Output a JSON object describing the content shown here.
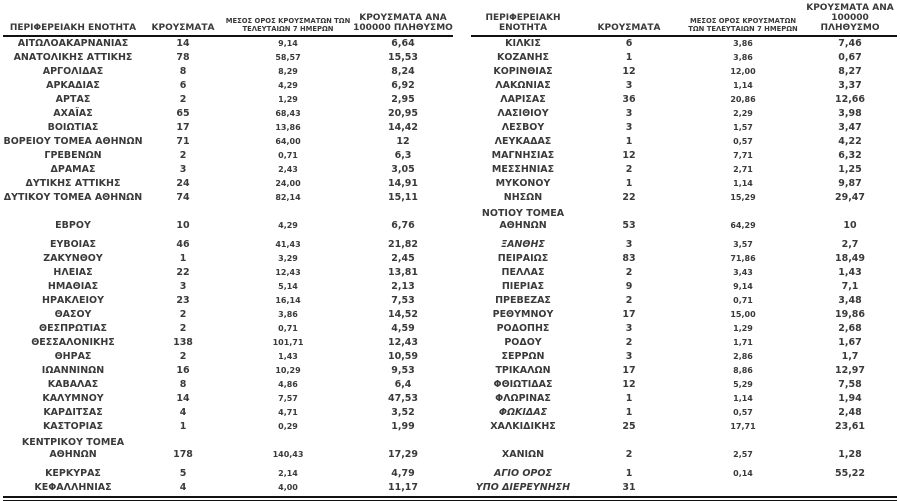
{
  "colors": {
    "text": "#3a3a3a",
    "line": "#111111"
  },
  "left_table": {
    "headers": {
      "region": "ΠΕΡΙΦΕΡΕΙΑΚΗ ΕΝΟΤΗΤΑ",
      "cases": "ΚΡΟΥΣΜΑΤΑ",
      "avg7": "ΜΕΣΟΣ ΟΡΟΣ ΚΡΟΥΣΜΑΤΩΝ ΤΩΝ ΤΕΛΕΥΤΑΙΩΝ 7 ΗΜΕΡΩΝ",
      "per100k": "ΚΡΟΥΣΜΑΤΑ ΑΝΑ 100000 ΠΛΗΘΥΣΜΟ"
    },
    "rows": [
      {
        "name": "ΑΙΤΩΛΟΑΚΑΡΝΑΝΙΑΣ",
        "cases": "14",
        "avg": "9,14",
        "per": "6,64"
      },
      {
        "name": "ΑΝΑΤΟΛΙΚΗΣ ΑΤΤΙΚΗΣ",
        "cases": "78",
        "avg": "58,57",
        "per": "15,53"
      },
      {
        "name": "ΑΡΓΟΛΙΔΑΣ",
        "cases": "8",
        "avg": "8,29",
        "per": "8,24"
      },
      {
        "name": "ΑΡΚΑΔΙΑΣ",
        "cases": "6",
        "avg": "4,29",
        "per": "6,92"
      },
      {
        "name": "ΑΡΤΑΣ",
        "cases": "2",
        "avg": "1,29",
        "per": "2,95"
      },
      {
        "name": "ΑΧΑΪΑΣ",
        "cases": "65",
        "avg": "68,43",
        "per": "20,95"
      },
      {
        "name": "ΒΟΙΩΤΙΑΣ",
        "cases": "17",
        "avg": "13,86",
        "per": "14,42"
      },
      {
        "name": "ΒΟΡΕΙΟΥ ΤΟΜΕΑ ΑΘΗΝΩΝ",
        "cases": "71",
        "avg": "64,00",
        "per": "12"
      },
      {
        "name": "ΓΡΕΒΕΝΩΝ",
        "cases": "2",
        "avg": "0,71",
        "per": "6,3"
      },
      {
        "name": "ΔΡΑΜΑΣ",
        "cases": "3",
        "avg": "2,43",
        "per": "3,05"
      },
      {
        "name": "ΔΥΤΙΚΗΣ ΑΤΤΙΚΗΣ",
        "cases": "24",
        "avg": "24,00",
        "per": "14,91"
      },
      {
        "name": "ΔΥΤΙΚΟΥ ΤΟΜΕΑ ΑΘΗΝΩΝ",
        "cases": "74",
        "avg": "82,14",
        "per": "15,11"
      },
      {
        "name": "ΕΒΡΟΥ",
        "cases": "10",
        "avg": "4,29",
        "per": "6,76",
        "tall": true
      },
      {
        "name": "ΕΥΒΟΙΑΣ",
        "cases": "46",
        "avg": "41,43",
        "per": "21,82"
      },
      {
        "name": "ΖΑΚΥΝΘΟΥ",
        "cases": "1",
        "avg": "3,29",
        "per": "2,45"
      },
      {
        "name": "ΗΛΕΙΑΣ",
        "cases": "22",
        "avg": "12,43",
        "per": "13,81"
      },
      {
        "name": "ΗΜΑΘΙΑΣ",
        "cases": "3",
        "avg": "5,14",
        "per": "2,13"
      },
      {
        "name": "ΗΡΑΚΛΕΙΟΥ",
        "cases": "23",
        "avg": "16,14",
        "per": "7,53"
      },
      {
        "name": "ΘΑΣΟΥ",
        "cases": "2",
        "avg": "3,86",
        "per": "14,52"
      },
      {
        "name": "ΘΕΣΠΡΩΤΙΑΣ",
        "cases": "2",
        "avg": "0,71",
        "per": "4,59"
      },
      {
        "name": "ΘΕΣΣΑΛΟΝΙΚΗΣ",
        "cases": "138",
        "avg": "101,71",
        "per": "12,43"
      },
      {
        "name": "ΘΗΡΑΣ",
        "cases": "2",
        "avg": "1,43",
        "per": "10,59"
      },
      {
        "name": "ΙΩΑΝΝΙΝΩΝ",
        "cases": "16",
        "avg": "10,29",
        "per": "9,53"
      },
      {
        "name": "ΚΑΒΑΛΑΣ",
        "cases": "8",
        "avg": "4,86",
        "per": "6,4"
      },
      {
        "name": "ΚΑΛΥΜΝΟΥ",
        "cases": "14",
        "avg": "7,57",
        "per": "47,53"
      },
      {
        "name": "ΚΑΡΔΙΤΣΑΣ",
        "cases": "4",
        "avg": "4,71",
        "per": "3,52"
      },
      {
        "name": "ΚΑΣΤΟΡΙΑΣ",
        "cases": "1",
        "avg": "0,29",
        "per": "1,99"
      },
      {
        "name": "ΚΕΝΤΡΙΚΟΥ ΤΟΜΕΑ ΑΘΗΝΩΝ",
        "cases": "178",
        "avg": "140,43",
        "per": "17,29",
        "tall": true
      },
      {
        "name": "ΚΕΡΚΥΡΑΣ",
        "cases": "5",
        "avg": "2,14",
        "per": "4,79"
      },
      {
        "name": "ΚΕΦΑΛΛΗΝΙΑΣ",
        "cases": "4",
        "avg": "4,00",
        "per": "11,17"
      }
    ]
  },
  "right_table": {
    "headers": {
      "region": "ΠΕΡΙΦΕΡΕΙΑΚΗ ΕΝΟΤΗΤΑ",
      "cases": "ΚΡΟΥΣΜΑΤΑ",
      "avg7": "ΜΕΣΟΣ ΟΡΟΣ ΚΡΟΥΣΜΑΤΩΝ ΤΩΝ ΤΕΛΕΥΤΑΙΩΝ 7 ΗΜΕΡΩΝ",
      "per100k": "ΚΡΟΥΣΜΑΤΑ ΑΝΑ 100000 ΠΛΗΘΥΣΜΟ"
    },
    "rows": [
      {
        "name": "ΚΙΛΚΙΣ",
        "cases": "6",
        "avg": "3,86",
        "per": "7,46"
      },
      {
        "name": "ΚΟΖΑΝΗΣ",
        "cases": "1",
        "avg": "3,86",
        "per": "0,67"
      },
      {
        "name": "ΚΟΡΙΝΘΙΑΣ",
        "cases": "12",
        "avg": "12,00",
        "per": "8,27"
      },
      {
        "name": "ΛΑΚΩΝΙΑΣ",
        "cases": "3",
        "avg": "1,14",
        "per": "3,37"
      },
      {
        "name": "ΛΑΡΙΣΑΣ",
        "cases": "36",
        "avg": "20,86",
        "per": "12,66"
      },
      {
        "name": "ΛΑΣΙΘΙΟΥ",
        "cases": "3",
        "avg": "2,29",
        "per": "3,98"
      },
      {
        "name": "ΛΕΣΒΟΥ",
        "cases": "3",
        "avg": "1,57",
        "per": "3,47"
      },
      {
        "name": "ΛΕΥΚΑΔΑΣ",
        "cases": "1",
        "avg": "0,57",
        "per": "4,22"
      },
      {
        "name": "ΜΑΓΝΗΣΙΑΣ",
        "cases": "12",
        "avg": "7,71",
        "per": "6,32"
      },
      {
        "name": "ΜΕΣΣΗΝΙΑΣ",
        "cases": "2",
        "avg": "2,71",
        "per": "1,25"
      },
      {
        "name": "ΜΥΚΟΝΟΥ",
        "cases": "1",
        "avg": "1,14",
        "per": "9,87"
      },
      {
        "name": "ΝΗΣΩΝ",
        "cases": "22",
        "avg": "15,29",
        "per": "29,47"
      },
      {
        "name": "ΝΟΤΙΟΥ ΤΟΜΕΑ ΑΘΗΝΩΝ",
        "cases": "53",
        "avg": "64,29",
        "per": "10",
        "tall": true
      },
      {
        "name": "ΞΑΝΘΗΣ",
        "cases": "3",
        "avg": "3,57",
        "per": "2,7",
        "italic": true
      },
      {
        "name": "ΠΕΙΡΑΙΩΣ",
        "cases": "83",
        "avg": "71,86",
        "per": "18,49"
      },
      {
        "name": "ΠΕΛΛΑΣ",
        "cases": "2",
        "avg": "3,43",
        "per": "1,43"
      },
      {
        "name": "ΠΙΕΡΙΑΣ",
        "cases": "9",
        "avg": "9,14",
        "per": "7,1"
      },
      {
        "name": "ΠΡΕΒΕΖΑΣ",
        "cases": "2",
        "avg": "0,71",
        "per": "3,48"
      },
      {
        "name": "ΡΕΘΥΜΝΟΥ",
        "cases": "17",
        "avg": "15,00",
        "per": "19,86"
      },
      {
        "name": "ΡΟΔΟΠΗΣ",
        "cases": "3",
        "avg": "1,29",
        "per": "2,68"
      },
      {
        "name": "ΡΟΔΟΥ",
        "cases": "2",
        "avg": "1,71",
        "per": "1,67"
      },
      {
        "name": "ΣΕΡΡΩΝ",
        "cases": "3",
        "avg": "2,86",
        "per": "1,7"
      },
      {
        "name": "ΤΡΙΚΑΛΩΝ",
        "cases": "17",
        "avg": "8,86",
        "per": "12,97"
      },
      {
        "name": "ΦΘΙΩΤΙΔΑΣ",
        "cases": "12",
        "avg": "5,29",
        "per": "7,58"
      },
      {
        "name": "ΦΛΩΡΙΝΑΣ",
        "cases": "1",
        "avg": "1,14",
        "per": "1,94"
      },
      {
        "name": "ΦΩΚΙΔΑΣ",
        "cases": "1",
        "avg": "0,57",
        "per": "2,48",
        "italic": true
      },
      {
        "name": "ΧΑΛΚΙΔΙΚΗΣ",
        "cases": "25",
        "avg": "17,71",
        "per": "23,61"
      },
      {
        "name": "ΧΑΝΙΩΝ",
        "cases": "2",
        "avg": "2,57",
        "per": "1,28",
        "tall": true
      },
      {
        "name": "ΑΓΙΟ ΟΡΟΣ",
        "cases": "1",
        "avg": "0,14",
        "per": "55,22",
        "italic": true
      },
      {
        "name": "ΥΠΟ ΔΙΕΡΕΥΝΗΣΗ",
        "cases": "31",
        "avg": "",
        "per": "",
        "italic": true
      }
    ]
  }
}
